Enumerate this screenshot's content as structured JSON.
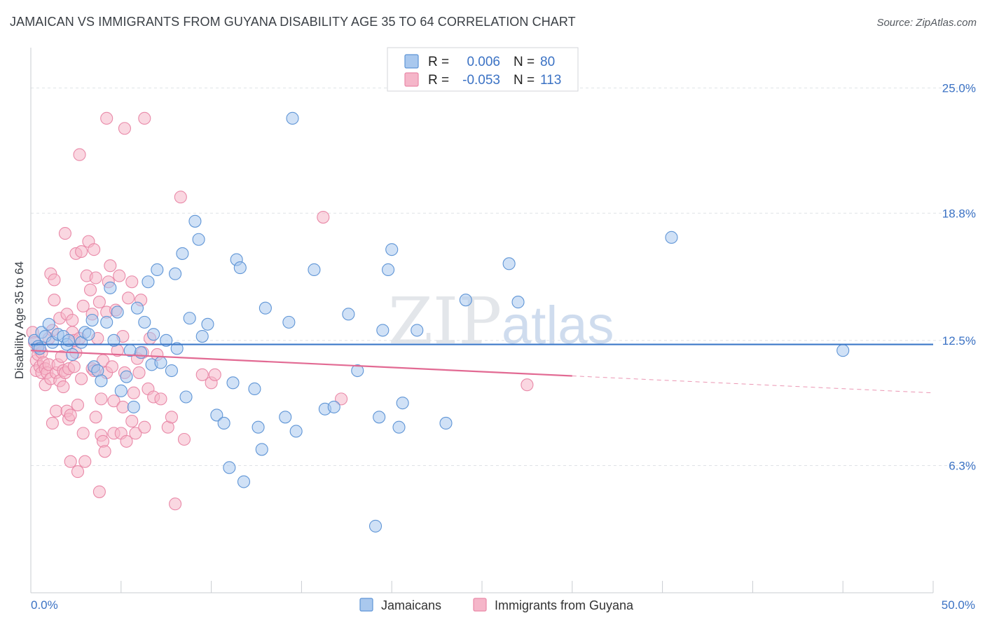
{
  "chart_data": {
    "type": "scatter",
    "title": "JAMAICAN VS IMMIGRANTS FROM GUYANA DISABILITY AGE 35 TO 64 CORRELATION CHART",
    "source": "Source: ZipAtlas.com",
    "xlabel": "",
    "ylabel": "Disability Age 35 to 64",
    "xlim": [
      0,
      50
    ],
    "ylim": [
      0,
      27
    ],
    "x_tick_labels": [
      {
        "value": 0,
        "label": "0.0%"
      },
      {
        "value": 50,
        "label": "50.0%"
      }
    ],
    "y_tick_labels": [
      {
        "value": 6.3,
        "label": "6.3%"
      },
      {
        "value": 12.5,
        "label": "12.5%"
      },
      {
        "value": 18.8,
        "label": "18.8%"
      },
      {
        "value": 25.0,
        "label": "25.0%"
      }
    ],
    "legend": {
      "rows": [
        {
          "r_label": "R =",
          "r_value": "0.006",
          "n_label": "N =",
          "n_value": "80"
        },
        {
          "r_label": "R =",
          "r_value": "-0.053",
          "n_label": "N =",
          "n_value": "113"
        }
      ]
    },
    "bottom_legend": [
      "Jamaicans",
      "Immigrants from Guyana"
    ],
    "watermark": {
      "zip": "ZIP",
      "atlas": "atlas"
    },
    "colors": {
      "jamaicans_fill": "#a9c8ee",
      "jamaicans_stroke": "#5f95d6",
      "jamaicans_line": "#3b78c8",
      "guyana_fill": "#f5b6c9",
      "guyana_stroke": "#e989a8",
      "guyana_line": "#e26a93",
      "tick_text": "#3b72c4",
      "grid": "#dfe2e6"
    },
    "series": [
      {
        "name": "Jamaicans",
        "trend": {
          "x0": 0,
          "y0": 12.3,
          "x1": 50,
          "y1": 12.3,
          "solid_to": 50
        },
        "points": [
          [
            0.2,
            12.5
          ],
          [
            0.4,
            12.2
          ],
          [
            0.5,
            12.1
          ],
          [
            0.6,
            12.9
          ],
          [
            0.8,
            12.7
          ],
          [
            1.0,
            13.3
          ],
          [
            1.2,
            12.4
          ],
          [
            1.5,
            12.8
          ],
          [
            1.8,
            12.7
          ],
          [
            2.0,
            12.3
          ],
          [
            2.1,
            12.5
          ],
          [
            2.3,
            11.8
          ],
          [
            2.8,
            12.4
          ],
          [
            3.0,
            12.9
          ],
          [
            3.2,
            12.8
          ],
          [
            3.4,
            13.5
          ],
          [
            3.5,
            11.2
          ],
          [
            3.7,
            11.0
          ],
          [
            3.9,
            10.5
          ],
          [
            4.2,
            13.4
          ],
          [
            4.4,
            15.1
          ],
          [
            4.6,
            12.5
          ],
          [
            4.8,
            13.9
          ],
          [
            5.0,
            10.0
          ],
          [
            5.3,
            10.7
          ],
          [
            5.5,
            12.0
          ],
          [
            5.7,
            9.2
          ],
          [
            5.9,
            14.1
          ],
          [
            6.1,
            11.9
          ],
          [
            6.3,
            13.4
          ],
          [
            6.5,
            15.4
          ],
          [
            6.7,
            11.3
          ],
          [
            6.8,
            12.8
          ],
          [
            7.0,
            16.0
          ],
          [
            7.2,
            11.4
          ],
          [
            7.5,
            12.5
          ],
          [
            7.8,
            11.0
          ],
          [
            8.0,
            15.8
          ],
          [
            8.1,
            12.1
          ],
          [
            8.4,
            16.8
          ],
          [
            8.6,
            9.7
          ],
          [
            8.8,
            13.6
          ],
          [
            9.3,
            17.5
          ],
          [
            9.5,
            12.7
          ],
          [
            9.8,
            13.3
          ],
          [
            10.3,
            8.8
          ],
          [
            10.7,
            8.4
          ],
          [
            11.0,
            6.2
          ],
          [
            11.2,
            10.4
          ],
          [
            11.4,
            16.5
          ],
          [
            11.6,
            16.1
          ],
          [
            11.8,
            5.5
          ],
          [
            12.4,
            10.1
          ],
          [
            12.6,
            8.2
          ],
          [
            12.8,
            7.1
          ],
          [
            13.0,
            14.1
          ],
          [
            14.1,
            8.7
          ],
          [
            14.3,
            13.4
          ],
          [
            14.7,
            8.0
          ],
          [
            15.7,
            16.0
          ],
          [
            16.3,
            9.1
          ],
          [
            16.8,
            9.2
          ],
          [
            17.6,
            13.8
          ],
          [
            18.1,
            11.0
          ],
          [
            19.1,
            3.3
          ],
          [
            19.3,
            8.7
          ],
          [
            19.5,
            13.0
          ],
          [
            19.8,
            16.0
          ],
          [
            20.0,
            17.0
          ],
          [
            20.4,
            8.2
          ],
          [
            20.6,
            9.4
          ],
          [
            21.4,
            13.0
          ],
          [
            23.0,
            8.4
          ],
          [
            24.1,
            14.5
          ],
          [
            26.5,
            16.3
          ],
          [
            27.0,
            14.4
          ],
          [
            35.5,
            17.6
          ],
          [
            45.0,
            12.0
          ],
          [
            14.5,
            23.5
          ],
          [
            9.1,
            18.4
          ]
        ]
      },
      {
        "name": "Immigrants from Guyana",
        "trend": {
          "x0": 0,
          "y0": 12.0,
          "x1": 50,
          "y1": 9.9,
          "solid_to": 30
        },
        "points": [
          [
            0.1,
            12.9
          ],
          [
            0.2,
            12.4
          ],
          [
            0.3,
            11.5
          ],
          [
            0.3,
            11.0
          ],
          [
            0.4,
            12.1
          ],
          [
            0.4,
            11.8
          ],
          [
            0.5,
            11.2
          ],
          [
            0.6,
            11.9
          ],
          [
            0.6,
            10.9
          ],
          [
            0.7,
            11.4
          ],
          [
            0.8,
            10.3
          ],
          [
            0.8,
            11.1
          ],
          [
            0.9,
            10.9
          ],
          [
            1.0,
            12.6
          ],
          [
            1.0,
            11.3
          ],
          [
            1.1,
            10.6
          ],
          [
            1.1,
            15.8
          ],
          [
            1.2,
            13.0
          ],
          [
            1.2,
            8.4
          ],
          [
            1.3,
            15.5
          ],
          [
            1.3,
            14.5
          ],
          [
            1.4,
            10.9
          ],
          [
            1.4,
            9.0
          ],
          [
            1.5,
            11.3
          ],
          [
            1.6,
            13.6
          ],
          [
            1.6,
            10.5
          ],
          [
            1.7,
            11.7
          ],
          [
            1.8,
            11.0
          ],
          [
            1.8,
            10.2
          ],
          [
            1.9,
            17.8
          ],
          [
            1.9,
            10.9
          ],
          [
            2.0,
            13.8
          ],
          [
            2.0,
            9.0
          ],
          [
            2.1,
            11.1
          ],
          [
            2.1,
            8.6
          ],
          [
            2.2,
            8.8
          ],
          [
            2.2,
            6.5
          ],
          [
            2.3,
            13.5
          ],
          [
            2.3,
            12.9
          ],
          [
            2.4,
            12.5
          ],
          [
            2.4,
            11.2
          ],
          [
            2.5,
            16.8
          ],
          [
            2.5,
            11.9
          ],
          [
            2.6,
            9.3
          ],
          [
            2.6,
            6.0
          ],
          [
            2.7,
            21.7
          ],
          [
            2.7,
            12.6
          ],
          [
            2.8,
            16.9
          ],
          [
            2.8,
            10.6
          ],
          [
            2.9,
            14.2
          ],
          [
            2.9,
            7.9
          ],
          [
            3.0,
            6.5
          ],
          [
            3.1,
            15.7
          ],
          [
            3.2,
            17.4
          ],
          [
            3.3,
            15.0
          ],
          [
            3.4,
            13.8
          ],
          [
            3.4,
            11.1
          ],
          [
            3.5,
            17.0
          ],
          [
            3.5,
            11.0
          ],
          [
            3.6,
            15.6
          ],
          [
            3.6,
            8.7
          ],
          [
            3.7,
            12.6
          ],
          [
            3.8,
            14.4
          ],
          [
            3.8,
            5.0
          ],
          [
            3.9,
            9.6
          ],
          [
            3.9,
            7.8
          ],
          [
            4.0,
            11.5
          ],
          [
            4.0,
            7.5
          ],
          [
            4.1,
            7.0
          ],
          [
            4.2,
            13.9
          ],
          [
            4.2,
            10.9
          ],
          [
            4.3,
            15.4
          ],
          [
            4.4,
            16.2
          ],
          [
            4.5,
            11.2
          ],
          [
            4.6,
            9.5
          ],
          [
            4.6,
            7.9
          ],
          [
            4.7,
            14.0
          ],
          [
            4.8,
            12.0
          ],
          [
            4.9,
            15.7
          ],
          [
            5.0,
            7.9
          ],
          [
            5.1,
            12.7
          ],
          [
            5.1,
            9.2
          ],
          [
            5.2,
            10.9
          ],
          [
            5.3,
            7.5
          ],
          [
            5.4,
            14.6
          ],
          [
            5.6,
            15.4
          ],
          [
            5.6,
            8.5
          ],
          [
            5.7,
            9.9
          ],
          [
            5.8,
            7.9
          ],
          [
            5.9,
            11.6
          ],
          [
            6.0,
            10.9
          ],
          [
            6.1,
            14.5
          ],
          [
            6.2,
            11.9
          ],
          [
            6.3,
            8.2
          ],
          [
            6.5,
            10.1
          ],
          [
            6.6,
            12.6
          ],
          [
            6.8,
            9.7
          ],
          [
            7.0,
            11.8
          ],
          [
            7.2,
            9.6
          ],
          [
            7.6,
            8.2
          ],
          [
            7.8,
            8.7
          ],
          [
            8.0,
            4.4
          ],
          [
            8.3,
            19.6
          ],
          [
            8.5,
            7.6
          ],
          [
            9.5,
            10.8
          ],
          [
            10.0,
            10.4
          ],
          [
            10.2,
            10.8
          ],
          [
            4.2,
            23.5
          ],
          [
            5.2,
            23.0
          ],
          [
            6.3,
            23.5
          ],
          [
            16.2,
            18.6
          ],
          [
            17.2,
            9.6
          ],
          [
            27.5,
            10.3
          ]
        ]
      }
    ]
  }
}
